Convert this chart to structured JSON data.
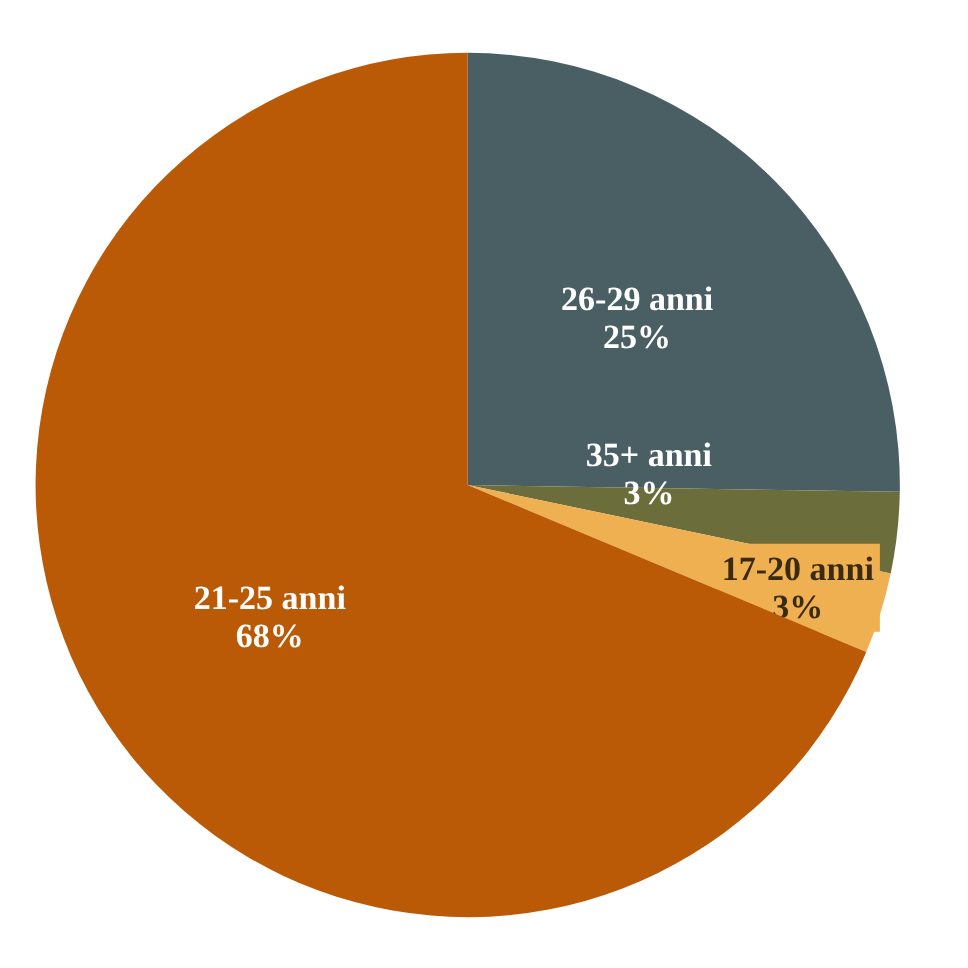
{
  "chart_data": {
    "type": "pie",
    "categories": [
      "26-29 anni",
      "35+ anni",
      "17-20 anni",
      "21-25 anni"
    ],
    "values": [
      25,
      3,
      3,
      68
    ],
    "value_labels": [
      "25%",
      "3%",
      "3%",
      "68%"
    ],
    "colors": [
      "#4a5f63",
      "#6b6e3b",
      "#efb052",
      "#bb5a06"
    ]
  }
}
